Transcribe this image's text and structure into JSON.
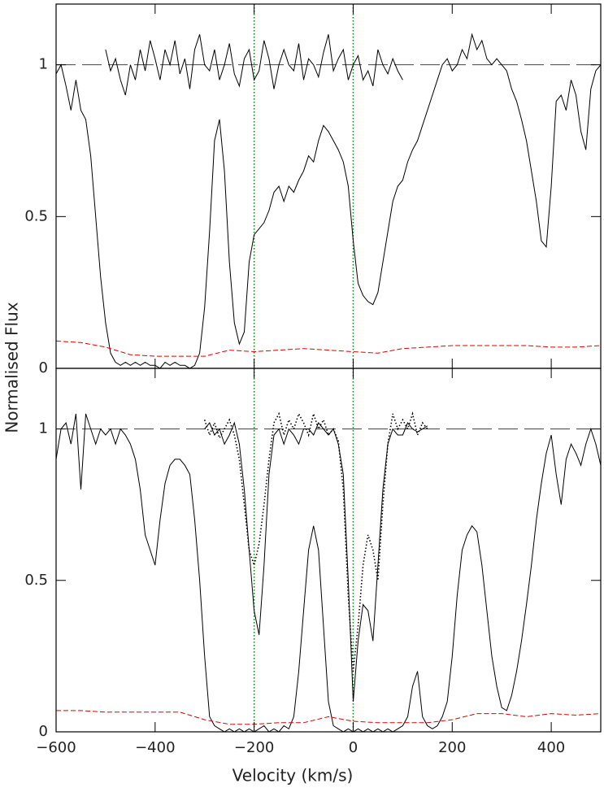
{
  "xlabel": "Velocity (km/s)",
  "ylabel": "Normalised Flux",
  "chart_data": [
    {
      "type": "line",
      "xlim": [
        -600,
        500
      ],
      "ylim": [
        0,
        1.2
      ],
      "xticks": [
        -600,
        -400,
        -200,
        0,
        200,
        400
      ],
      "yticks": [
        0,
        0.5,
        1
      ],
      "hline": 1,
      "vlines": [
        -200,
        0
      ],
      "vline_color": "#008000",
      "series": [
        {
          "color": "#000000",
          "style": "solid",
          "x": [
            -600,
            -590,
            -580,
            -570,
            -560,
            -550,
            -540,
            -530,
            -520,
            -510,
            -500,
            -490,
            -480,
            -470,
            -460,
            -450,
            -440,
            -430,
            -420,
            -410,
            -400,
            -390,
            -380,
            -370,
            -360,
            -350,
            -340,
            -330,
            -320,
            -310,
            -300,
            -290,
            -280,
            -270,
            -260,
            -250,
            -240,
            -230,
            -220,
            -210,
            -200,
            -190,
            -180,
            -170,
            -160,
            -150,
            -140,
            -130,
            -120,
            -110,
            -100,
            -90,
            -80,
            -70,
            -60,
            -50,
            -40,
            -30,
            -20,
            -10,
            0,
            10,
            20,
            30,
            40,
            50,
            60,
            70,
            80,
            90,
            100,
            110,
            120,
            130,
            140,
            150,
            160,
            170,
            180,
            190,
            200,
            210,
            220,
            230,
            240,
            250,
            260,
            270,
            280,
            290,
            300,
            310,
            320,
            330,
            340,
            350,
            360,
            370,
            380,
            390,
            400,
            410,
            420,
            430,
            440,
            450,
            460,
            470,
            480,
            490,
            500
          ],
          "values": [
            0.97,
            1.0,
            0.93,
            0.85,
            0.95,
            0.85,
            0.82,
            0.7,
            0.5,
            0.3,
            0.15,
            0.05,
            0.02,
            0.01,
            0.02,
            0.01,
            0.02,
            0.01,
            0.02,
            0.01,
            0.01,
            0.0,
            0.02,
            0.01,
            0.02,
            0.01,
            0.01,
            0.0,
            0.01,
            0.05,
            0.2,
            0.45,
            0.75,
            0.82,
            0.65,
            0.35,
            0.15,
            0.08,
            0.12,
            0.35,
            0.44,
            0.46,
            0.48,
            0.52,
            0.58,
            0.6,
            0.55,
            0.6,
            0.58,
            0.62,
            0.65,
            0.7,
            0.68,
            0.75,
            0.8,
            0.78,
            0.75,
            0.72,
            0.68,
            0.6,
            0.42,
            0.28,
            0.24,
            0.22,
            0.21,
            0.25,
            0.35,
            0.45,
            0.55,
            0.6,
            0.62,
            0.68,
            0.72,
            0.75,
            0.8,
            0.85,
            0.9,
            0.95,
            1.0,
            1.02,
            0.98,
            1.0,
            1.05,
            1.02,
            1.1,
            1.05,
            1.08,
            1.02,
            1.0,
            1.02,
            1.0,
            0.98,
            0.92,
            0.88,
            0.82,
            0.75,
            0.65,
            0.55,
            0.42,
            0.4,
            0.6,
            0.88,
            0.9,
            0.85,
            0.95,
            0.9,
            0.78,
            0.72,
            0.92,
            0.98,
            1.0
          ]
        },
        {
          "color": "#000000",
          "style": "solid",
          "x": [
            -500,
            -490,
            -480,
            -470,
            -460,
            -450,
            -440,
            -430,
            -420,
            -410,
            -400,
            -390,
            -380,
            -370,
            -360,
            -350,
            -340,
            -330,
            -320,
            -310,
            -300,
            -290,
            -280,
            -270,
            -260,
            -250,
            -240,
            -230,
            -220,
            -210,
            -200,
            -190,
            -180,
            -170,
            -160,
            -150,
            -140,
            -130,
            -120,
            -110,
            -100,
            -90,
            -80,
            -70,
            -60,
            -50,
            -40,
            -30,
            -20,
            -10,
            0,
            10,
            20,
            30,
            40,
            50,
            60,
            70,
            80,
            90,
            100
          ],
          "values": [
            1.05,
            0.98,
            1.02,
            0.95,
            0.9,
            1.0,
            0.95,
            1.05,
            0.98,
            1.08,
            1.02,
            0.95,
            1.05,
            1.0,
            1.08,
            0.97,
            1.02,
            0.92,
            1.05,
            1.1,
            1.0,
            0.98,
            1.05,
            0.95,
            1.0,
            1.07,
            0.97,
            0.93,
            1.02,
            1.05,
            0.95,
            0.98,
            1.08,
            1.02,
            0.92,
            1.0,
            1.05,
            1.0,
            0.98,
            1.07,
            0.95,
            1.02,
            1.0,
            0.96,
            1.04,
            1.1,
            0.98,
            1.02,
            1.05,
            0.95,
            1.0,
            1.03,
            0.95,
            0.98,
            0.93,
            1.05,
            1.0,
            0.97,
            1.02,
            0.98,
            0.95
          ]
        },
        {
          "color": "#e00000",
          "style": "dashed",
          "x": [
            -600,
            -550,
            -500,
            -450,
            -400,
            -350,
            -300,
            -250,
            -200,
            -150,
            -100,
            -50,
            0,
            50,
            100,
            150,
            200,
            250,
            300,
            350,
            400,
            450,
            500
          ],
          "values": [
            0.09,
            0.085,
            0.07,
            0.045,
            0.04,
            0.04,
            0.04,
            0.06,
            0.055,
            0.06,
            0.065,
            0.06,
            0.055,
            0.05,
            0.065,
            0.07,
            0.075,
            0.075,
            0.075,
            0.075,
            0.07,
            0.07,
            0.075
          ]
        }
      ]
    },
    {
      "type": "line",
      "xlim": [
        -600,
        500
      ],
      "ylim": [
        0,
        1.2
      ],
      "xticks": [
        {
          "value": -600,
          "label": "−600"
        },
        {
          "value": -400,
          "label": "−400"
        },
        {
          "value": -200,
          "label": "−200"
        },
        0,
        200,
        400
      ],
      "yticks": [
        0,
        0.5,
        1
      ],
      "hline": 1,
      "vlines": [
        -200,
        0
      ],
      "vline_color": "#008000",
      "series": [
        {
          "color": "#000000",
          "style": "solid",
          "x": [
            -600,
            -590,
            -580,
            -570,
            -560,
            -550,
            -540,
            -530,
            -520,
            -510,
            -500,
            -490,
            -480,
            -470,
            -460,
            -450,
            -440,
            -430,
            -420,
            -410,
            -400,
            -390,
            -380,
            -370,
            -360,
            -350,
            -340,
            -330,
            -320,
            -310,
            -300,
            -290,
            -280,
            -270,
            -260,
            -250,
            -240,
            -230,
            -220,
            -210,
            -200,
            -190,
            -180,
            -170,
            -160,
            -150,
            -140,
            -130,
            -120,
            -110,
            -100,
            -90,
            -80,
            -70,
            -60,
            -50,
            -40,
            -30,
            -20,
            -10,
            0,
            10,
            20,
            30,
            40,
            50,
            60,
            70,
            80,
            90,
            100,
            110,
            120,
            130,
            140,
            150,
            160,
            170,
            180,
            190,
            200,
            210,
            220,
            230,
            240,
            250,
            260,
            270,
            280,
            290,
            300,
            310,
            320,
            330,
            340,
            350,
            360,
            370,
            380,
            390,
            400,
            410,
            420,
            430,
            440,
            450,
            460,
            470,
            480,
            490,
            500
          ],
          "values": [
            0.9,
            1.0,
            1.02,
            0.95,
            1.05,
            0.8,
            1.05,
            1.0,
            0.95,
            1.0,
            0.98,
            1.0,
            0.95,
            1.0,
            0.98,
            0.95,
            0.9,
            0.8,
            0.65,
            0.6,
            0.55,
            0.7,
            0.82,
            0.88,
            0.9,
            0.9,
            0.88,
            0.85,
            0.7,
            0.5,
            0.25,
            0.05,
            0.02,
            0.01,
            0.0,
            0.01,
            0.0,
            0.01,
            0.0,
            0.01,
            0.0,
            0.01,
            0.02,
            0.0,
            0.01,
            0.0,
            0.02,
            0.01,
            0.05,
            0.2,
            0.4,
            0.6,
            0.68,
            0.6,
            0.35,
            0.1,
            0.02,
            0.01,
            0.0,
            0.01,
            0.0,
            0.01,
            0.0,
            0.01,
            0.0,
            0.01,
            0.0,
            0.01,
            0.0,
            0.01,
            0.02,
            0.05,
            0.15,
            0.2,
            0.05,
            0.02,
            0.01,
            0.02,
            0.05,
            0.1,
            0.25,
            0.45,
            0.6,
            0.65,
            0.68,
            0.66,
            0.55,
            0.4,
            0.25,
            0.15,
            0.08,
            0.07,
            0.12,
            0.2,
            0.3,
            0.42,
            0.55,
            0.7,
            0.82,
            0.92,
            0.98,
            0.85,
            0.75,
            0.9,
            0.95,
            0.92,
            0.88,
            0.95,
            1.0,
            0.95,
            0.88
          ]
        },
        {
          "color": "#000000",
          "style": "solid",
          "x": [
            -300,
            -290,
            -280,
            -270,
            -260,
            -250,
            -240,
            -230,
            -220,
            -210,
            -200,
            -190,
            -180,
            -170,
            -160,
            -150,
            -140,
            -130,
            -120,
            -110,
            -100,
            -90,
            -80,
            -70,
            -60,
            -50,
            -40,
            -30,
            -20,
            -10,
            0,
            10,
            20,
            30,
            40,
            50,
            60,
            70,
            80,
            90,
            100,
            110,
            120,
            130,
            140,
            150
          ],
          "values": [
            1.0,
            1.02,
            0.98,
            1.0,
            0.95,
            0.98,
            1.02,
            0.95,
            0.8,
            0.6,
            0.4,
            0.32,
            0.55,
            0.85,
            0.98,
            1.0,
            0.95,
            1.0,
            0.98,
            0.95,
            1.0,
            1.0,
            0.98,
            1.02,
            1.0,
            0.98,
            1.0,
            0.95,
            0.85,
            0.5,
            0.1,
            0.3,
            0.42,
            0.4,
            0.3,
            0.55,
            0.8,
            0.95,
            1.0,
            0.98,
            0.98,
            1.02,
            1.0,
            0.99,
            1.0,
            1.01
          ]
        },
        {
          "color": "#000000",
          "style": "dotted",
          "x": [
            -300,
            -290,
            -280,
            -270,
            -260,
            -250,
            -240,
            -230,
            -220,
            -210,
            -200,
            -190,
            -180,
            -170,
            -160,
            -150,
            -140,
            -130,
            -120,
            -110,
            -100,
            -90,
            -80,
            -70,
            -60,
            -50,
            -40,
            -30,
            -20,
            -10,
            0,
            10,
            20,
            30,
            40,
            50,
            60,
            70,
            80,
            90,
            100,
            110,
            120,
            130,
            140,
            150
          ],
          "values": [
            1.03,
            0.98,
            1.02,
            0.97,
            1.0,
            1.03,
            0.98,
            0.9,
            0.75,
            0.6,
            0.55,
            0.62,
            0.75,
            0.9,
            1.02,
            1.05,
            0.98,
            1.03,
            1.0,
            1.05,
            1.02,
            0.98,
            1.05,
            1.0,
            1.03,
            0.98,
            1.0,
            0.96,
            0.8,
            0.45,
            0.2,
            0.35,
            0.55,
            0.65,
            0.6,
            0.5,
            0.75,
            0.95,
            1.05,
            1.0,
            1.03,
            1.0,
            1.05,
            0.98,
            1.02,
            1.0
          ]
        },
        {
          "color": "#e00000",
          "style": "dashed",
          "x": [
            -600,
            -550,
            -500,
            -450,
            -400,
            -350,
            -300,
            -250,
            -200,
            -150,
            -100,
            -50,
            0,
            50,
            100,
            150,
            200,
            250,
            300,
            350,
            400,
            450,
            500
          ],
          "values": [
            0.07,
            0.07,
            0.065,
            0.065,
            0.065,
            0.065,
            0.04,
            0.025,
            0.025,
            0.03,
            0.03,
            0.05,
            0.035,
            0.03,
            0.03,
            0.03,
            0.04,
            0.06,
            0.06,
            0.05,
            0.06,
            0.055,
            0.06
          ]
        }
      ]
    }
  ]
}
